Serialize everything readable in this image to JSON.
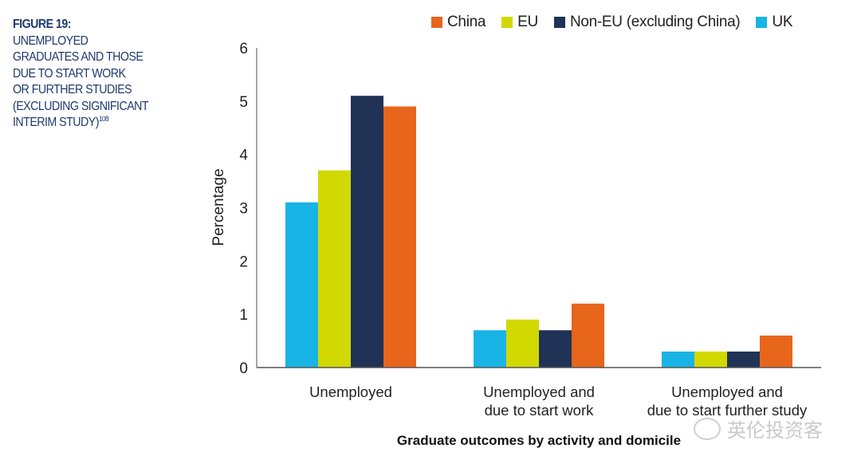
{
  "figure": {
    "label": "FIGURE 19:",
    "caption_lines": [
      "UNEMPLOYED",
      "GRADUATES AND THOSE",
      "DUE TO START WORK",
      "OR FURTHER STUDIES",
      "(EXCLUDING SIGNIFICANT",
      "INTERIM STUDY)"
    ],
    "footnote": "108"
  },
  "watermark": {
    "text": "英伦投资客",
    "icon": "wechat-icon"
  },
  "colors": {
    "China": "#e8651c",
    "EU": "#d2d900",
    "Non-EU (excluding China)": "#213257",
    "UK": "#18b4e6",
    "caption": "#1e3a6e",
    "axis": "#555555"
  },
  "chart_data": {
    "type": "bar",
    "title": "",
    "xlabel": "Graduate outcomes by activity and domicile",
    "ylabel": "Percentage",
    "ylim": [
      0,
      6
    ],
    "yticks": [
      0,
      1,
      2,
      3,
      4,
      5,
      6
    ],
    "grid": false,
    "legend_position": "top",
    "legend_order": [
      "China",
      "EU",
      "Non-EU (excluding China)",
      "UK"
    ],
    "categories": [
      [
        "Unemployed"
      ],
      [
        "Unemployed and",
        "due to start work"
      ],
      [
        "Unemployed and",
        "due to start further study"
      ]
    ],
    "series": [
      {
        "name": "UK",
        "values": [
          3.1,
          0.7,
          0.3
        ]
      },
      {
        "name": "EU",
        "values": [
          3.7,
          0.9,
          0.3
        ]
      },
      {
        "name": "Non-EU (excluding China)",
        "values": [
          5.1,
          0.7,
          0.3
        ]
      },
      {
        "name": "China",
        "values": [
          4.9,
          1.2,
          0.6
        ]
      }
    ]
  }
}
